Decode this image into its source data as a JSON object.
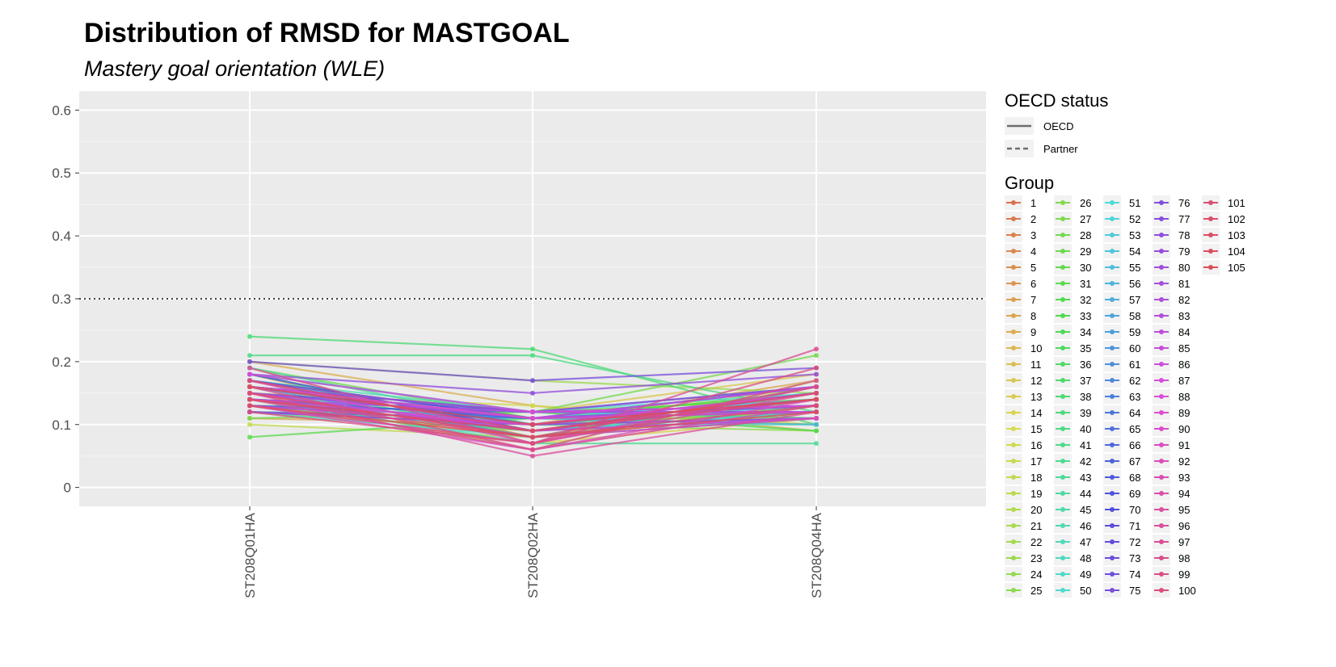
{
  "chart_data": {
    "type": "line",
    "title": "Distribution of RMSD for MASTGOAL",
    "subtitle": "Mastery goal orientation (WLE)",
    "xlabel": "",
    "ylabel": "",
    "categories": [
      "ST208Q01HA",
      "ST208Q02HA",
      "ST208Q04HA"
    ],
    "ylim": [
      -0.03,
      0.63
    ],
    "yticks": [
      0,
      0.1,
      0.2,
      0.3,
      0.4,
      0.5,
      0.6
    ],
    "ytick_labels": [
      "0",
      "0.1",
      "0.2",
      "0.3",
      "0.4",
      "0.5",
      "0.6"
    ],
    "threshold": 0.3,
    "grid": true,
    "legend_position": "right",
    "linetype_legend": {
      "title": "OECD status",
      "items": [
        {
          "label": "OECD",
          "linetype": "solid"
        },
        {
          "label": "Partner",
          "linetype": "dashed"
        }
      ]
    },
    "group_legend_title": "Group",
    "series": [
      {
        "name": "1",
        "values": [
          0.14,
          0.1,
          0.14
        ],
        "status": "OECD"
      },
      {
        "name": "2",
        "values": [
          0.16,
          0.12,
          0.11
        ],
        "status": "OECD"
      },
      {
        "name": "3",
        "values": [
          0.13,
          0.07,
          0.16
        ],
        "status": "OECD"
      },
      {
        "name": "4",
        "values": [
          0.18,
          0.08,
          0.12
        ],
        "status": "OECD"
      },
      {
        "name": "5",
        "values": [
          0.12,
          0.09,
          0.15
        ],
        "status": "OECD"
      },
      {
        "name": "6",
        "values": [
          0.17,
          0.11,
          0.1
        ],
        "status": "OECD"
      },
      {
        "name": "7",
        "values": [
          0.15,
          0.06,
          0.13
        ],
        "status": "OECD"
      },
      {
        "name": "8",
        "values": [
          0.11,
          0.1,
          0.17
        ],
        "status": "OECD"
      },
      {
        "name": "9",
        "values": [
          0.2,
          0.13,
          0.09
        ],
        "status": "OECD"
      },
      {
        "name": "10",
        "values": [
          0.13,
          0.08,
          0.14
        ],
        "status": "OECD"
      },
      {
        "name": "11",
        "values": [
          0.16,
          0.1,
          0.12
        ],
        "status": "OECD"
      },
      {
        "name": "12",
        "values": [
          0.14,
          0.12,
          0.18
        ],
        "status": "OECD"
      },
      {
        "name": "13",
        "values": [
          0.19,
          0.07,
          0.11
        ],
        "status": "OECD"
      },
      {
        "name": "14",
        "values": [
          0.12,
          0.11,
          0.15
        ],
        "status": "OECD"
      },
      {
        "name": "15",
        "values": [
          0.17,
          0.09,
          0.13
        ],
        "status": "OECD"
      },
      {
        "name": "16",
        "values": [
          0.15,
          0.13,
          0.1
        ],
        "status": "OECD"
      },
      {
        "name": "17",
        "values": [
          0.13,
          0.1,
          0.16
        ],
        "status": "OECD"
      },
      {
        "name": "18",
        "values": [
          0.1,
          0.08,
          0.12
        ],
        "status": "OECD"
      },
      {
        "name": "19",
        "values": [
          0.18,
          0.12,
          0.14
        ],
        "status": "OECD"
      },
      {
        "name": "20",
        "values": [
          0.14,
          0.06,
          0.17
        ],
        "status": "OECD"
      },
      {
        "name": "21",
        "values": [
          0.16,
          0.11,
          0.11
        ],
        "status": "OECD"
      },
      {
        "name": "22",
        "values": [
          0.12,
          0.09,
          0.13
        ],
        "status": "OECD"
      },
      {
        "name": "23",
        "values": [
          0.2,
          0.17,
          0.15
        ],
        "status": "OECD"
      },
      {
        "name": "24",
        "values": [
          0.15,
          0.1,
          0.09
        ],
        "status": "OECD"
      },
      {
        "name": "25",
        "values": [
          0.13,
          0.12,
          0.14
        ],
        "status": "OECD"
      },
      {
        "name": "26",
        "values": [
          0.17,
          0.08,
          0.16
        ],
        "status": "OECD"
      },
      {
        "name": "27",
        "values": [
          0.14,
          0.1,
          0.12
        ],
        "status": "OECD"
      },
      {
        "name": "28",
        "values": [
          0.11,
          0.12,
          0.21
        ],
        "status": "OECD"
      },
      {
        "name": "29",
        "values": [
          0.19,
          0.11,
          0.15
        ],
        "status": "OECD"
      },
      {
        "name": "30",
        "values": [
          0.15,
          0.09,
          0.11
        ],
        "status": "OECD"
      },
      {
        "name": "31",
        "values": [
          0.08,
          0.11,
          0.13
        ],
        "status": "OECD"
      },
      {
        "name": "32",
        "values": [
          0.13,
          0.1,
          0.14
        ],
        "status": "OECD"
      },
      {
        "name": "33",
        "values": [
          0.16,
          0.12,
          0.09
        ],
        "status": "OECD"
      },
      {
        "name": "34",
        "values": [
          0.14,
          0.11,
          0.15
        ],
        "status": "OECD"
      },
      {
        "name": "35",
        "values": [
          0.18,
          0.09,
          0.12
        ],
        "status": "OECD"
      },
      {
        "name": "36",
        "values": [
          0.12,
          0.11,
          0.13
        ],
        "status": "OECD"
      },
      {
        "name": "37",
        "values": [
          0.15,
          0.08,
          0.16
        ],
        "status": "OECD"
      },
      {
        "name": "38",
        "values": [
          0.24,
          0.22,
          0.1
        ],
        "status": "OECD"
      },
      {
        "name": "39",
        "values": [
          0.13,
          0.1,
          0.14
        ],
        "status": "OECD"
      },
      {
        "name": "40",
        "values": [
          0.21,
          0.21,
          0.12
        ],
        "status": "OECD"
      },
      {
        "name": "41",
        "values": [
          0.16,
          0.12,
          0.11
        ],
        "status": "OECD"
      },
      {
        "name": "42",
        "values": [
          0.14,
          0.07,
          0.07
        ],
        "status": "OECD"
      },
      {
        "name": "43",
        "values": [
          0.19,
          0.1,
          0.15
        ],
        "status": "OECD"
      },
      {
        "name": "44",
        "values": [
          0.15,
          0.11,
          0.13
        ],
        "status": "OECD"
      },
      {
        "name": "45",
        "values": [
          0.13,
          0.09,
          0.12
        ],
        "status": "OECD"
      },
      {
        "name": "46",
        "values": [
          0.17,
          0.12,
          0.16
        ],
        "status": "OECD"
      },
      {
        "name": "47",
        "values": [
          0.14,
          0.1,
          0.1
        ],
        "status": "OECD"
      },
      {
        "name": "48",
        "values": [
          0.16,
          0.11,
          0.14
        ],
        "status": "OECD"
      },
      {
        "name": "49",
        "values": [
          0.12,
          0.08,
          0.13
        ],
        "status": "OECD"
      },
      {
        "name": "50",
        "values": [
          0.18,
          0.12,
          0.15
        ],
        "status": "OECD"
      },
      {
        "name": "51",
        "values": [
          0.15,
          0.1,
          0.11
        ],
        "status": "OECD"
      },
      {
        "name": "52",
        "values": [
          0.13,
          0.11,
          0.14
        ],
        "status": "OECD"
      },
      {
        "name": "53",
        "values": [
          0.17,
          0.09,
          0.12
        ],
        "status": "OECD"
      },
      {
        "name": "54",
        "values": [
          0.14,
          0.12,
          0.16
        ],
        "status": "OECD"
      },
      {
        "name": "55",
        "values": [
          0.16,
          0.1,
          0.13
        ],
        "status": "OECD"
      },
      {
        "name": "56",
        "values": [
          0.12,
          0.11,
          0.1
        ],
        "status": "OECD"
      },
      {
        "name": "57",
        "values": [
          0.15,
          0.09,
          0.15
        ],
        "status": "OECD"
      },
      {
        "name": "58",
        "values": [
          0.18,
          0.12,
          0.12
        ],
        "status": "OECD"
      },
      {
        "name": "59",
        "values": [
          0.14,
          0.1,
          0.14
        ],
        "status": "OECD"
      },
      {
        "name": "60",
        "values": [
          0.13,
          0.11,
          0.16
        ],
        "status": "OECD"
      },
      {
        "name": "61",
        "values": [
          0.16,
          0.08,
          0.11
        ],
        "status": "OECD"
      },
      {
        "name": "62",
        "values": [
          0.14,
          0.12,
          0.13
        ],
        "status": "OECD"
      },
      {
        "name": "63",
        "values": [
          0.17,
          0.1,
          0.15
        ],
        "status": "OECD"
      },
      {
        "name": "64",
        "values": [
          0.12,
          0.11,
          0.12
        ],
        "status": "OECD"
      },
      {
        "name": "65",
        "values": [
          0.15,
          0.09,
          0.14
        ],
        "status": "OECD"
      },
      {
        "name": "66",
        "values": [
          0.13,
          0.12,
          0.16
        ],
        "status": "OECD"
      },
      {
        "name": "67",
        "values": [
          0.16,
          0.1,
          0.11
        ],
        "status": "OECD"
      },
      {
        "name": "68",
        "values": [
          0.14,
          0.11,
          0.13
        ],
        "status": "OECD"
      },
      {
        "name": "69",
        "values": [
          0.18,
          0.09,
          0.15
        ],
        "status": "OECD"
      },
      {
        "name": "70",
        "values": [
          0.15,
          0.12,
          0.12
        ],
        "status": "OECD"
      },
      {
        "name": "71",
        "values": [
          0.12,
          0.1,
          0.14
        ],
        "status": "OECD"
      },
      {
        "name": "72",
        "values": [
          0.17,
          0.11,
          0.16
        ],
        "status": "OECD"
      },
      {
        "name": "73",
        "values": [
          0.14,
          0.09,
          0.11
        ],
        "status": "OECD"
      },
      {
        "name": "74",
        "values": [
          0.16,
          0.12,
          0.13
        ],
        "status": "OECD"
      },
      {
        "name": "75",
        "values": [
          0.2,
          0.17,
          0.19
        ],
        "status": "OECD"
      },
      {
        "name": "76",
        "values": [
          0.13,
          0.1,
          0.15
        ],
        "status": "OECD"
      },
      {
        "name": "77",
        "values": [
          0.15,
          0.11,
          0.12
        ],
        "status": "OECD"
      },
      {
        "name": "78",
        "values": [
          0.18,
          0.15,
          0.18
        ],
        "status": "OECD"
      },
      {
        "name": "79",
        "values": [
          0.14,
          0.09,
          0.14
        ],
        "status": "OECD"
      },
      {
        "name": "80",
        "values": [
          0.16,
          0.12,
          0.16
        ],
        "status": "OECD"
      },
      {
        "name": "81",
        "values": [
          0.12,
          0.1,
          0.11
        ],
        "status": "OECD"
      },
      {
        "name": "82",
        "values": [
          0.15,
          0.11,
          0.13
        ],
        "status": "OECD"
      },
      {
        "name": "83",
        "values": [
          0.17,
          0.09,
          0.15
        ],
        "status": "OECD"
      },
      {
        "name": "84",
        "values": [
          0.14,
          0.12,
          0.12
        ],
        "status": "OECD"
      },
      {
        "name": "85",
        "values": [
          0.13,
          0.1,
          0.14
        ],
        "status": "OECD"
      },
      {
        "name": "86",
        "values": [
          0.16,
          0.11,
          0.16
        ],
        "status": "OECD"
      },
      {
        "name": "87",
        "values": [
          0.15,
          0.09,
          0.11
        ],
        "status": "OECD"
      },
      {
        "name": "88",
        "values": [
          0.18,
          0.12,
          0.13
        ],
        "status": "OECD"
      },
      {
        "name": "89",
        "values": [
          0.14,
          0.1,
          0.15
        ],
        "status": "OECD"
      },
      {
        "name": "90",
        "values": [
          0.16,
          0.11,
          0.12
        ],
        "status": "OECD"
      },
      {
        "name": "91",
        "values": [
          0.13,
          0.06,
          0.14
        ],
        "status": "OECD"
      },
      {
        "name": "92",
        "values": [
          0.17,
          0.07,
          0.16
        ],
        "status": "OECD"
      },
      {
        "name": "93",
        "values": [
          0.15,
          0.08,
          0.11
        ],
        "status": "OECD"
      },
      {
        "name": "94",
        "values": [
          0.14,
          0.06,
          0.13
        ],
        "status": "OECD"
      },
      {
        "name": "95",
        "values": [
          0.19,
          0.07,
          0.15
        ],
        "status": "OECD"
      },
      {
        "name": "96",
        "values": [
          0.15,
          0.05,
          0.12
        ],
        "status": "OECD"
      },
      {
        "name": "97",
        "values": [
          0.13,
          0.07,
          0.22
        ],
        "status": "OECD"
      },
      {
        "name": "98",
        "values": [
          0.16,
          0.06,
          0.17
        ],
        "status": "OECD"
      },
      {
        "name": "99",
        "values": [
          0.14,
          0.08,
          0.16
        ],
        "status": "OECD"
      },
      {
        "name": "100",
        "values": [
          0.12,
          0.07,
          0.19
        ],
        "status": "OECD"
      },
      {
        "name": "101",
        "values": [
          0.17,
          0.09,
          0.14
        ],
        "status": "OECD"
      },
      {
        "name": "102",
        "values": [
          0.15,
          0.08,
          0.13
        ],
        "status": "OECD"
      },
      {
        "name": "103",
        "values": [
          0.14,
          0.09,
          0.15
        ],
        "status": "OECD"
      },
      {
        "name": "104",
        "values": [
          0.13,
          0.08,
          0.12
        ],
        "status": "OECD"
      },
      {
        "name": "105",
        "values": [
          0.16,
          0.1,
          0.14
        ],
        "status": "OECD"
      }
    ]
  }
}
